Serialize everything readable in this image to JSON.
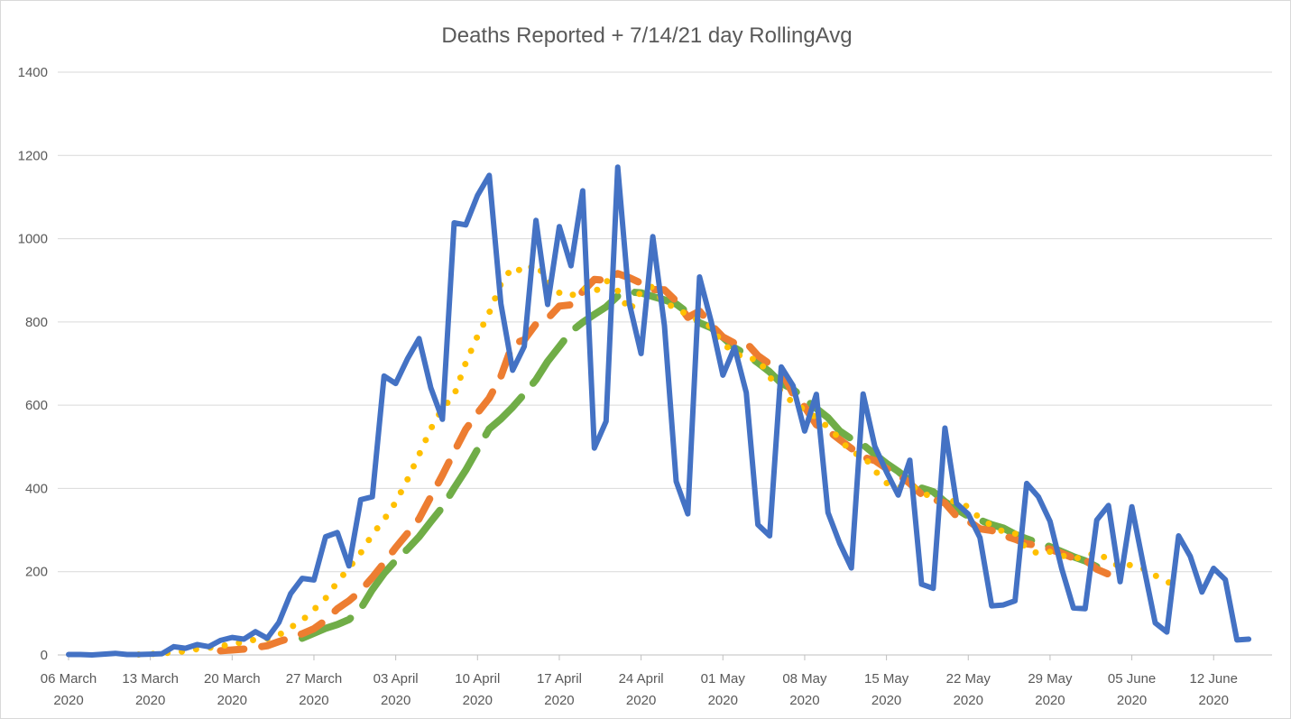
{
  "chart_data": {
    "type": "line",
    "title": "Deaths Reported + 7/14/21 day RollingAvg",
    "xlabel": "",
    "ylabel": "",
    "ylim": [
      0,
      1400
    ],
    "yticks": [
      0,
      200,
      400,
      600,
      800,
      1000,
      1200,
      1400
    ],
    "grid": true,
    "start_date": "2020-03-06",
    "x_ticks": [
      {
        "day": 0,
        "line1": "06 March",
        "line2": "2020"
      },
      {
        "day": 7,
        "line1": "13 March",
        "line2": "2020"
      },
      {
        "day": 14,
        "line1": "20 March",
        "line2": "2020"
      },
      {
        "day": 21,
        "line1": "27 March",
        "line2": "2020"
      },
      {
        "day": 28,
        "line1": "03 April",
        "line2": "2020"
      },
      {
        "day": 35,
        "line1": "10 April",
        "line2": "2020"
      },
      {
        "day": 42,
        "line1": "17 April",
        "line2": "2020"
      },
      {
        "day": 49,
        "line1": "24 April",
        "line2": "2020"
      },
      {
        "day": 56,
        "line1": "01 May",
        "line2": "2020"
      },
      {
        "day": 63,
        "line1": "08 May",
        "line2": "2020"
      },
      {
        "day": 70,
        "line1": "15 May",
        "line2": "2020"
      },
      {
        "day": 77,
        "line1": "22 May",
        "line2": "2020"
      },
      {
        "day": 84,
        "line1": "29 May",
        "line2": "2020"
      },
      {
        "day": 91,
        "line1": "05 June",
        "line2": "2020"
      },
      {
        "day": 98,
        "line1": "12 June",
        "line2": "2020"
      }
    ],
    "series": [
      {
        "name": "Deaths Reported",
        "color": "#4472C4",
        "style": "solid",
        "start_day": 0,
        "values": [
          1,
          1,
          0,
          2,
          4,
          1,
          1,
          2,
          3,
          20,
          16,
          25,
          20,
          35,
          42,
          38,
          56,
          40,
          78,
          147,
          184,
          180,
          284,
          294,
          214,
          373,
          380,
          670,
          652,
          711,
          760,
          642,
          566,
          1038,
          1033,
          1104,
          1152,
          844,
          684,
          741,
          1044,
          842,
          1029,
          935,
          1115,
          497,
          561,
          1172,
          843,
          724,
          1005,
          791,
          417,
          339,
          908,
          801,
          672,
          739,
          630,
          313,
          286,
          692,
          647,
          538,
          626,
          342,
          268,
          209,
          627,
          501,
          440,
          384,
          468,
          170,
          160,
          545,
          364,
          338,
          282,
          118,
          120,
          130,
          412,
          380,
          321,
          207,
          113,
          111,
          324,
          359,
          176,
          356,
          215,
          77,
          55,
          286,
          237,
          151,
          208,
          181,
          36,
          38
        ]
      },
      {
        "name": "7 day RollingAvg",
        "color": "#FFC000",
        "style": "dotted",
        "start_day": 6,
        "values": [
          1,
          2,
          4,
          6,
          9,
          14,
          17,
          21,
          26,
          31,
          37,
          39,
          48,
          66,
          83,
          109,
          136,
          175,
          209,
          245,
          289,
          325,
          367,
          421,
          481,
          543,
          592,
          624,
          702,
          766,
          822,
          891,
          932,
          919,
          940,
          898,
          870,
          862,
          882,
          870,
          900,
          875,
          826,
          874,
          885,
          844,
          835,
          815,
          803,
          788,
          747,
          727,
          710,
          712,
          668,
          634,
          605,
          589,
          570,
          547,
          520,
          486,
          479,
          443,
          413,
          403,
          406,
          396,
          371,
          366,
          371,
          355,
          328,
          311,
          296,
          292,
          254,
          244,
          248,
          239,
          231,
          236,
          247,
          228,
          211,
          217,
          207,
          191,
          175,
          170
        ]
      },
      {
        "name": "14 day RollingAvg",
        "color": "#ED7D31",
        "style": "dashed",
        "start_day": 13,
        "values": [
          10,
          12,
          14,
          18,
          22,
          32,
          41,
          51,
          63,
          83,
          111,
          130,
          154,
          186,
          221,
          258,
          292,
          327,
          380,
          432,
          488,
          542,
          581,
          617,
          669,
          747,
          757,
          795,
          808,
          838,
          841,
          873,
          902,
          900,
          916,
          906,
          893,
          878,
          877,
          850,
          811,
          826,
          793,
          764,
          749,
          750,
          719,
          699,
          683,
          627,
          596,
          553,
          539,
          517,
          496,
          475,
          467,
          448,
          434,
          412,
          386,
          374,
          365,
          333,
          322,
          303,
          299,
          287,
          278,
          267,
          263,
          254,
          244,
          233,
          229,
          206,
          194
        ]
      },
      {
        "name": "21 day RollingAvg",
        "color": "#70AD47",
        "style": "longdash",
        "start_day": 20,
        "values": [
          40,
          52,
          64,
          73,
          85,
          111,
          157,
          196,
          227,
          254,
          284,
          320,
          355,
          401,
          444,
          494,
          543,
          567,
          595,
          627,
          661,
          705,
          741,
          777,
          799,
          818,
          836,
          862,
          872,
          870,
          861,
          853,
          843,
          822,
          798,
          786,
          763,
          738,
          722,
          702,
          680,
          653,
          638,
          616,
          592,
          570,
          538,
          519,
          505,
          482,
          460,
          441,
          418,
          401,
          392,
          368,
          350,
          333,
          324,
          313,
          305,
          290,
          279,
          269,
          260,
          248,
          236,
          226,
          212,
          205
        ]
      }
    ]
  }
}
